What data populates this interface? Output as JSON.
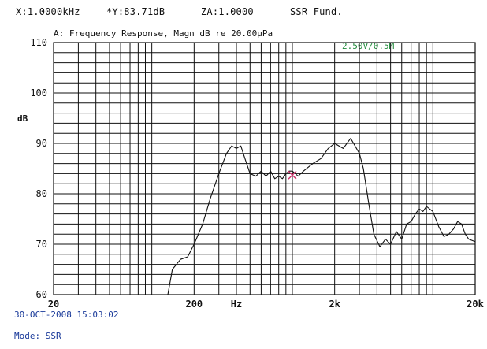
{
  "header": {
    "x_readout": "X:1.0000kHz",
    "y_readout": "*Y:83.71dB",
    "z_readout": "ZA:1.0000",
    "mode_readout": "SSR Fund."
  },
  "footer": {
    "timestamp": "30-OCT-2008 15:03:02",
    "mode": "Mode: SSR"
  },
  "colors": {
    "grid": "#111111",
    "curve": "#111111",
    "cursor": "#d0306a",
    "note": "#1f8a3a",
    "footer": "#1a3a9a"
  },
  "chart_data": {
    "type": "line",
    "title": "A: Frequency Response, Magn dB re 20.00µPa",
    "annotation": "2.50V/0.5M",
    "xlabel": "Hz",
    "ylabel": "dB",
    "x_scale": "log",
    "xlim": [
      20,
      20000
    ],
    "ylim": [
      60,
      110
    ],
    "x_ticks": [
      {
        "value": 20,
        "label": "20"
      },
      {
        "value": 200,
        "label": "200"
      },
      {
        "value": 2000,
        "label": "2k"
      },
      {
        "value": 20000,
        "label": "20k"
      }
    ],
    "x_label_at": 400,
    "y_ticks": [
      60,
      70,
      80,
      90,
      100,
      110
    ],
    "grid": true,
    "cursor": {
      "x": 1000,
      "y": 83.71
    },
    "series": [
      {
        "x": [
          130,
          140,
          160,
          180,
          200,
          230,
          260,
          300,
          340,
          370,
          400,
          430,
          460,
          500,
          550,
          600,
          650,
          700,
          750,
          800,
          850,
          900,
          950,
          1000,
          1050,
          1100,
          1200,
          1400,
          1600,
          1800,
          2000,
          2300,
          2600,
          3000,
          3200,
          3500,
          3800,
          4200,
          4600,
          5000,
          5500,
          6000,
          6500,
          7000,
          7500,
          8000,
          8500,
          9000,
          10000,
          11000,
          12000,
          13000,
          14000,
          15000,
          16000,
          17000,
          18000,
          20000
        ],
        "y": [
          60,
          65,
          67,
          67.5,
          70,
          74,
          79,
          84,
          88,
          89.5,
          89,
          89.5,
          87,
          84,
          83.5,
          84.5,
          83.5,
          84.5,
          83,
          83.5,
          83,
          84,
          84.5,
          84.5,
          84,
          83.5,
          84.5,
          86,
          87,
          89,
          90,
          89,
          91,
          88,
          85,
          78,
          72,
          69.5,
          71,
          70,
          72.5,
          71,
          74,
          74.5,
          76,
          77,
          76.5,
          77.5,
          76.5,
          73.5,
          71.5,
          72,
          73,
          74.5,
          74,
          72,
          71,
          70.5
        ]
      }
    ]
  }
}
